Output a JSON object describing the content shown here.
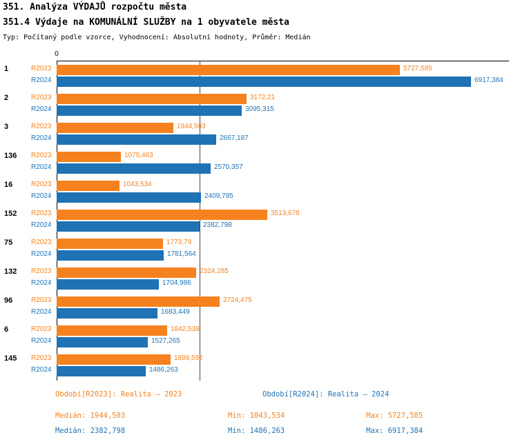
{
  "header": {
    "title": "351. Analýza VÝDAJŮ rozpočtu města",
    "subtitle": "351.4 Výdaje na KOMUNÁLNÍ SLUŽBY na 1 obyvatele města",
    "meta": "Typ: Počítaný podle vzorce, Vyhodnocení: Absolutní hodnoty, Průměr: Medián"
  },
  "colors": {
    "r2023": "#F5821F",
    "r2024": "#1F72B4",
    "axis": "#000000",
    "median_line": "#444444"
  },
  "chart_data": {
    "type": "bar",
    "orientation": "horizontal",
    "title": "351. Analýza VÝDAJŮ rozpočtu města",
    "subtitle": "351.4 Výdaje na KOMUNÁLNÍ SLUŽBY na 1 obyvatele města",
    "categories": [
      "1",
      "2",
      "3",
      "136",
      "16",
      "152",
      "75",
      "132",
      "96",
      "6",
      "145"
    ],
    "series": [
      {
        "name": "R2023",
        "color_key": "r2023",
        "values": [
          5727.585,
          3172.21,
          1944.503,
          1075.463,
          1043.534,
          3513.678,
          1773.79,
          2324.285,
          2724.475,
          1842.538,
          1899.592
        ],
        "labels": [
          "5727,585",
          "3172,21",
          "1944,503",
          "1075,463",
          "1043,534",
          "3513,678",
          "1773,79",
          "2324,285",
          "2724,475",
          "1842,538",
          "1899,592"
        ]
      },
      {
        "name": "R2024",
        "color_key": "r2024",
        "values": [
          6917.384,
          3095.315,
          2667.187,
          2570.357,
          2409.795,
          2382.798,
          1781.564,
          1704.986,
          1683.449,
          1527.265,
          1486.263
        ],
        "labels": [
          "6917,384",
          "3095,315",
          "2667,187",
          "2570,357",
          "2409,795",
          "2382,798",
          "1781,564",
          "1704,986",
          "1683,449",
          "1527,265",
          "1486,263"
        ]
      }
    ],
    "x_axis": {
      "zero_label": "0"
    },
    "xlim": [
      0,
      7200
    ],
    "median_line_value": 2382.798,
    "grid": false,
    "legend_position": "bottom"
  },
  "legend": {
    "r2023": "Období[R2023]: Realita – 2023",
    "r2024": "Období[R2024]: Realita – 2024"
  },
  "stats": {
    "r2023": {
      "median": "Medián: 1944,503",
      "min": "Min: 1043,534",
      "max": "Max: 5727,585"
    },
    "r2024": {
      "median": "Medián: 2382,798",
      "min": "Min: 1486,263",
      "max": "Max: 6917,384"
    }
  }
}
